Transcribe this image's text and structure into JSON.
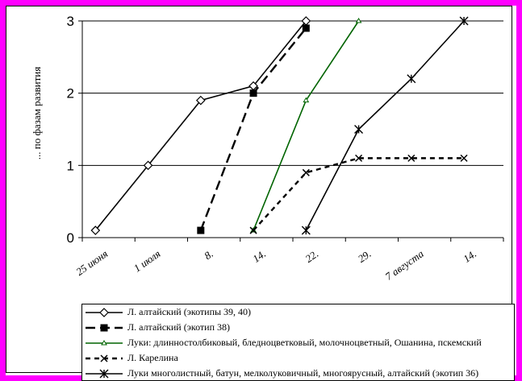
{
  "chart_data": {
    "type": "line",
    "ylabel": "... по фазам развития",
    "ylim": [
      0,
      3
    ],
    "yticks": [
      "0",
      "1",
      "2",
      "3"
    ],
    "xticks": [
      "25 июня",
      "1 июля",
      "8.",
      "14.",
      "22.",
      "29.",
      "7 августа",
      "14."
    ],
    "grid": "horizontal",
    "legend_position": "bottom",
    "series": [
      {
        "name": "Л. алтайский (экотипы 39, 40)",
        "color": "#000000",
        "dash": "solid",
        "marker": "diamond-open",
        "points": [
          [
            0.25,
            0.1
          ],
          [
            1.25,
            1.0
          ],
          [
            2.25,
            1.9
          ],
          [
            3.25,
            2.1
          ],
          [
            4.25,
            3.0
          ]
        ]
      },
      {
        "name": "Л. алтайский (экотип 38)",
        "color": "#000000",
        "dash": "long-dash",
        "marker": "square-filled",
        "points": [
          [
            2.25,
            0.1
          ],
          [
            3.25,
            2.0
          ],
          [
            4.25,
            2.9
          ]
        ]
      },
      {
        "name": "Луки: длинностолбиковый, бледноцветковый, молочноцветный, Ошанина, пскемский",
        "color": "#006400",
        "dash": "solid",
        "marker": "triangle-small",
        "points": [
          [
            3.25,
            0.1
          ],
          [
            4.25,
            1.9
          ],
          [
            5.25,
            3.0
          ]
        ]
      },
      {
        "name": "Л. Карелина",
        "color": "#000000",
        "dash": "dashed",
        "marker": "x-star",
        "points": [
          [
            3.25,
            0.1
          ],
          [
            4.25,
            0.9
          ],
          [
            5.25,
            1.1
          ],
          [
            6.25,
            1.1
          ],
          [
            7.25,
            1.1
          ]
        ]
      },
      {
        "name": "Луки многолистный, батун, мелколуковичный, многоярусный, алтайский (экотип 36)",
        "color": "#000000",
        "dash": "solid",
        "marker": "asterisk",
        "points": [
          [
            4.25,
            0.1
          ],
          [
            5.25,
            1.5
          ],
          [
            6.25,
            2.2
          ],
          [
            7.25,
            3.0
          ]
        ]
      }
    ]
  }
}
